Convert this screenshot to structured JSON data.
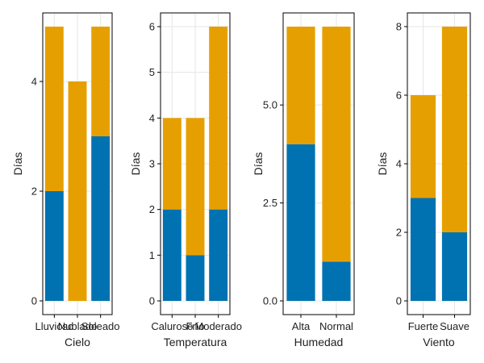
{
  "colors": {
    "bottom": "#0072b2",
    "top": "#e69f00"
  },
  "chart_data": [
    {
      "type": "bar",
      "xlabel": "Cielo",
      "ylabel": "Días",
      "categories": [
        "Lluvioso",
        "Nublado",
        "Soleado"
      ],
      "series": [
        {
          "name": "bottom",
          "values": [
            2,
            0,
            3
          ]
        },
        {
          "name": "top",
          "values": [
            3,
            4,
            2
          ]
        }
      ],
      "ylim": [
        -0.25,
        5.25
      ],
      "yticks": [
        0,
        2,
        4
      ],
      "ytick_labels": [
        "0",
        "2",
        "4"
      ]
    },
    {
      "type": "bar",
      "xlabel": "Temperatura",
      "ylabel": "Días",
      "categories": [
        "Caluroso",
        "Frío",
        "Moderado"
      ],
      "series": [
        {
          "name": "bottom",
          "values": [
            2,
            1,
            2
          ]
        },
        {
          "name": "top",
          "values": [
            2,
            3,
            4
          ]
        }
      ],
      "ylim": [
        -0.3,
        6.3
      ],
      "yticks": [
        0,
        1,
        2,
        3,
        4,
        5,
        6
      ],
      "ytick_labels": [
        "0",
        "1",
        "2",
        "3",
        "4",
        "5",
        "6"
      ]
    },
    {
      "type": "bar",
      "xlabel": "Humedad",
      "ylabel": "Días",
      "categories": [
        "Alta",
        "Normal"
      ],
      "series": [
        {
          "name": "bottom",
          "values": [
            4,
            1
          ]
        },
        {
          "name": "top",
          "values": [
            3,
            6
          ]
        }
      ],
      "ylim": [
        -0.35,
        7.35
      ],
      "yticks": [
        0,
        2.5,
        5
      ],
      "ytick_labels": [
        "0.0",
        "2.5",
        "5.0"
      ]
    },
    {
      "type": "bar",
      "xlabel": "Viento",
      "ylabel": "Días",
      "categories": [
        "Fuerte",
        "Suave"
      ],
      "series": [
        {
          "name": "bottom",
          "values": [
            3,
            2
          ]
        },
        {
          "name": "top",
          "values": [
            3,
            6
          ]
        }
      ],
      "ylim": [
        -0.4,
        8.4
      ],
      "yticks": [
        0,
        2,
        4,
        6,
        8
      ],
      "ytick_labels": [
        "0",
        "2",
        "4",
        "6",
        "8"
      ]
    }
  ]
}
